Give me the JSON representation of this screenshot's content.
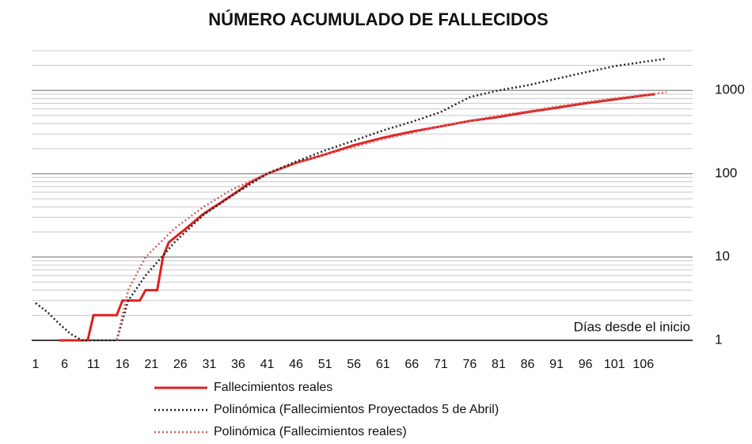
{
  "chart_data": {
    "type": "line",
    "title": "NÚMERO ACUMULADO DE FALLECIDOS",
    "annotation": "Días desde el inicio",
    "xlim": [
      1,
      110
    ],
    "xticks": [
      1,
      6,
      11,
      16,
      21,
      26,
      31,
      36,
      41,
      46,
      51,
      56,
      61,
      66,
      71,
      76,
      81,
      86,
      91,
      96,
      101,
      106
    ],
    "ylim": [
      1,
      3000
    ],
    "yticks": [
      1,
      10,
      100,
      1000
    ],
    "log_y": true,
    "grid": true,
    "minor_grid": true,
    "legend": "bottom",
    "series": [
      {
        "name": "Fallecimientos reales",
        "color": "#e02020",
        "line_style": "solid",
        "x": [
          5,
          10,
          11,
          15,
          16,
          19,
          20,
          22,
          23,
          24,
          27,
          30,
          33,
          36,
          38,
          41,
          46,
          51,
          56,
          61,
          66,
          71,
          76,
          81,
          86,
          91,
          96,
          101,
          106,
          108
        ],
        "values": [
          1,
          1,
          2,
          2,
          3,
          3,
          4,
          4,
          10,
          15,
          22,
          33,
          45,
          62,
          78,
          100,
          135,
          170,
          220,
          270,
          320,
          370,
          430,
          480,
          550,
          620,
          700,
          780,
          870,
          900
        ]
      },
      {
        "name": "Polinómica (Fallecimientos Proyectados 5 de Abril)",
        "color": "#222222",
        "line_style": "dotted",
        "x": [
          1,
          3,
          5,
          7,
          9,
          15,
          17,
          20,
          25,
          30,
          35,
          41,
          46,
          51,
          56,
          61,
          66,
          71,
          76,
          81,
          86,
          91,
          96,
          101,
          106,
          110
        ],
        "values": [
          2.8,
          2.2,
          1.6,
          1.2,
          1,
          1,
          3,
          6,
          15,
          32,
          55,
          100,
          140,
          190,
          250,
          330,
          420,
          550,
          830,
          1000,
          1150,
          1380,
          1650,
          1950,
          2200,
          2400
        ]
      },
      {
        "name": "Polinómica (Fallecimientos reales)",
        "color": "#d06060",
        "line_style": "dotted",
        "x": [
          15,
          17,
          20,
          25,
          30,
          35,
          41,
          46,
          51,
          56,
          61,
          66,
          71,
          76,
          81,
          86,
          91,
          96,
          101,
          106,
          110
        ],
        "values": [
          1,
          4,
          10,
          22,
          40,
          65,
          100,
          135,
          170,
          210,
          260,
          310,
          370,
          430,
          500,
          560,
          640,
          720,
          800,
          880,
          950
        ]
      }
    ]
  }
}
